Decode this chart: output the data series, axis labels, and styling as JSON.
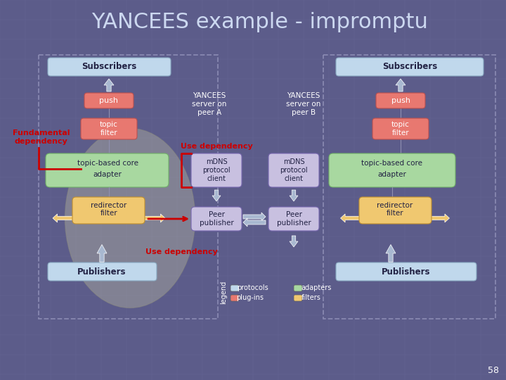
{
  "title": "YANCEES example - impromptu",
  "bg_color": "#5c5c8a",
  "title_color": "#ccd8f0",
  "slide_number": "58",
  "colors": {
    "light_blue": "#c0d8ec",
    "pink_red": "#e87870",
    "light_green": "#a8d8a0",
    "light_orange": "#f0c870",
    "light_purple": "#c8c0e0",
    "white": "#ffffff",
    "dark_text": "#222244",
    "red_label": "#cc0000",
    "gray_ellipse": "#b0b0a0"
  },
  "peer_A_label": "YANCEES\nserver on\npeer A",
  "peer_B_label": "YANCEES\nserver on\npeer B",
  "fundamental_label": "Fundamental\ndependency",
  "use_dep_top_label": "Use dependency",
  "use_dep_bot_label": "Use dependency",
  "protocols_label": "protocols",
  "plug_ins_label": "plug-ins",
  "adapters_label": "adapters",
  "filters_label": "filters"
}
